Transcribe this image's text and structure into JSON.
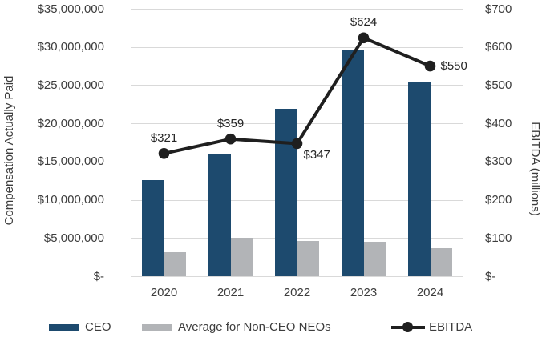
{
  "chart_data": {
    "type": "combo-bar-line",
    "title": "",
    "categories": [
      "2020",
      "2021",
      "2022",
      "2023",
      "2024"
    ],
    "series": [
      {
        "name": "CEO",
        "type": "bar",
        "axis": "left",
        "color": "#1d4a6e",
        "values": [
          12600000,
          16000000,
          21900000,
          29700000,
          25400000
        ]
      },
      {
        "name": "Average for Non-CEO NEOs",
        "type": "bar",
        "axis": "left",
        "color": "#b2b4b7",
        "values": [
          3100000,
          5000000,
          4650000,
          4500000,
          3700000
        ]
      },
      {
        "name": "EBITDA",
        "type": "line",
        "axis": "right",
        "color": "#1f1f1f",
        "values": [
          321,
          359,
          347,
          624,
          550
        ],
        "point_labels": [
          "$321",
          "$359",
          "$347",
          "$624",
          "$550"
        ],
        "label_placement": [
          "above",
          "above",
          "below-right",
          "above",
          "right"
        ]
      }
    ],
    "left_axis": {
      "title": "Compensation Actually Paid",
      "min": 0,
      "max": 35000000,
      "step": 5000000,
      "tick_labels": [
        "$35,000,000",
        "$30,000,000",
        "$25,000,000",
        "$20,000,000",
        "$15,000,000",
        "$10,000,000",
        "$5,000,000",
        "$-"
      ]
    },
    "right_axis": {
      "title": "EBITDA (millions)",
      "min": 0,
      "max": 700,
      "step": 100,
      "tick_labels": [
        "$700",
        "$600",
        "$500",
        "$400",
        "$300",
        "$200",
        "$100",
        "$-"
      ]
    },
    "grid": true,
    "legend_position": "bottom",
    "colors": {
      "gridline": "#d9d9d9",
      "axis_text": "#3d3d3d",
      "data_label_text": "#262626"
    }
  }
}
